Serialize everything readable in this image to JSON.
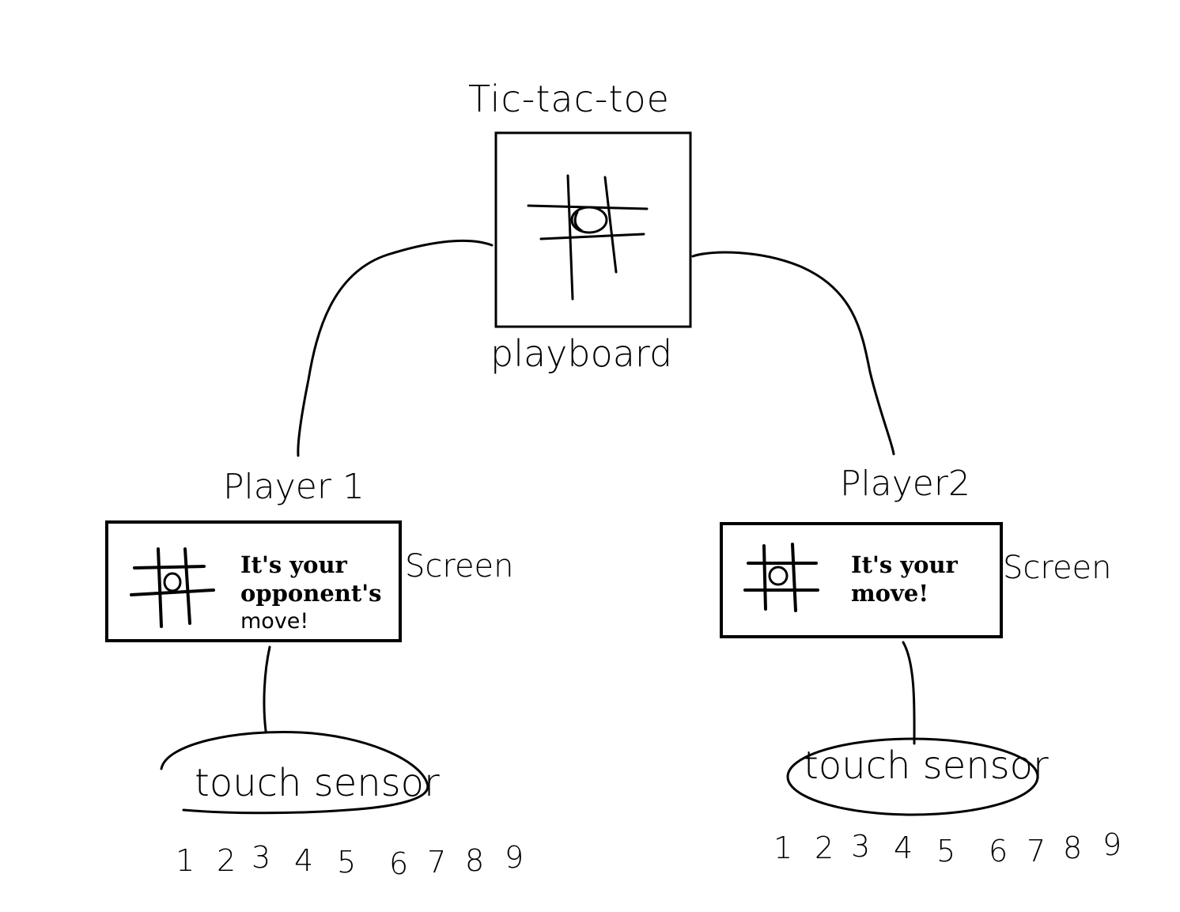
{
  "diagram": {
    "title": "Tic-tac-toe",
    "playboard": {
      "label": "playboard",
      "grid_mark": "O"
    },
    "player1": {
      "label": "Player 1",
      "screen_label": "Screen",
      "screen_grid_mark": "O",
      "message_lines": [
        "It's your",
        "opponent's",
        "move!"
      ],
      "sensor_label": "touch sensor",
      "keys": [
        "1",
        "2",
        "3",
        "4",
        "5",
        "6",
        "7",
        "8",
        "9"
      ]
    },
    "player2": {
      "label": "Player2",
      "screen_label": "Screen",
      "screen_grid_mark": "O",
      "message_lines": [
        "It's your",
        "move!"
      ],
      "sensor_label": "touch sensor",
      "keys": [
        "1",
        "2",
        "3",
        "4",
        "5",
        "6",
        "7",
        "8",
        "9"
      ]
    }
  }
}
